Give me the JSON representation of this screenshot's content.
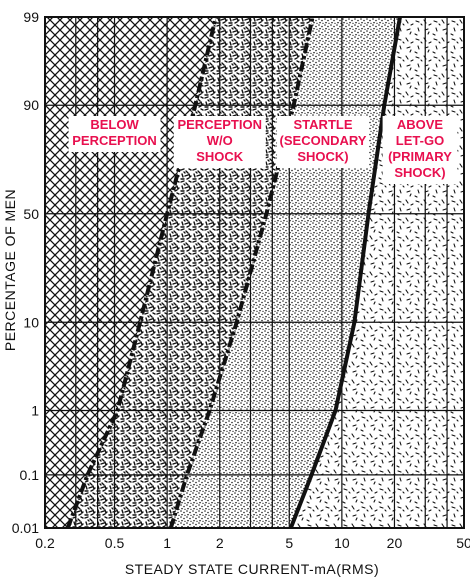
{
  "chart_data": {
    "type": "area",
    "title": "",
    "xlabel": "STEADY STATE CURRENT-mA(RMS)",
    "ylabel": "PERCENTAGE OF MEN",
    "x_scale": "log",
    "y_scale": "probability",
    "xlim": [
      0.2,
      50
    ],
    "ylim": [
      0.01,
      99
    ],
    "x_ticks": [
      0.2,
      0.5,
      1,
      2,
      5,
      10,
      20,
      50
    ],
    "x_tick_labels": [
      "0.2",
      "0.5",
      "1",
      "2",
      "5",
      "10",
      "20",
      "50"
    ],
    "y_ticks": [
      0.01,
      0.1,
      1,
      10,
      50,
      90,
      99
    ],
    "y_tick_labels": [
      "0.01",
      "0.1",
      "1",
      "10",
      "50",
      "90",
      "99"
    ],
    "x_minor_gridlines": [
      0.3,
      0.4,
      3,
      4,
      30,
      40
    ],
    "grid": true,
    "boundaries": [
      {
        "style": "dash-dot",
        "x": [
          0.27,
          0.35,
          0.52,
          0.7,
          1.0,
          1.45,
          1.9
        ],
        "y": [
          0.01,
          0.1,
          1,
          10,
          50,
          90,
          99
        ]
      },
      {
        "style": "dash-dot",
        "x": [
          1.05,
          1.3,
          1.75,
          2.5,
          3.7,
          5.3,
          6.8
        ],
        "y": [
          0.01,
          0.1,
          1,
          10,
          50,
          90,
          99
        ]
      },
      {
        "style": "solid",
        "x": [
          5.1,
          6.7,
          9.2,
          11.8,
          14.2,
          17.5,
          21.5
        ],
        "y": [
          0.01,
          0.1,
          1,
          10,
          50,
          90,
          99
        ]
      }
    ],
    "regions": [
      {
        "label_lines": [
          "BELOW",
          "PERCEPTION"
        ],
        "fill": "crosshatch",
        "label_x": 0.5,
        "label_y": 85
      },
      {
        "label_lines": [
          "PERCEPTION",
          "W/O",
          "SHOCK"
        ],
        "fill": "dense-squiggle",
        "label_x": 2.0,
        "label_y": 85
      },
      {
        "label_lines": [
          "STARTLE",
          "(SECONDARY",
          "SHOCK)"
        ],
        "fill": "fine-stipple",
        "label_x": 7.8,
        "label_y": 85
      },
      {
        "label_lines": [
          "ABOVE",
          "LET-GO",
          "(PRIMARY",
          "SHOCK)"
        ],
        "fill": "sparse-dash",
        "label_x": 28,
        "label_y": 85
      }
    ],
    "colors": {
      "label": "#e8104f",
      "ink": "#111111",
      "paper": "#ffffff"
    },
    "legend": "none"
  }
}
